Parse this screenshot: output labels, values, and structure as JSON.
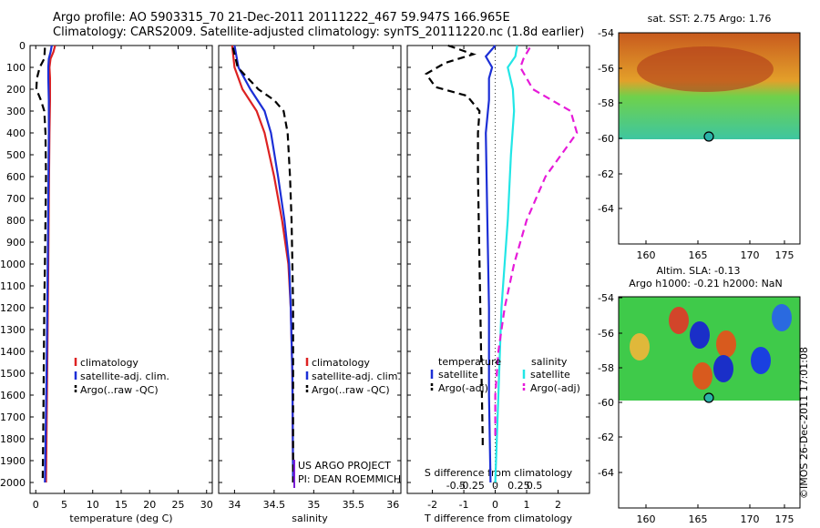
{
  "title": {
    "line1": "Argo profile: AO 5903315_70 21-Dec-2011 20111222_467 59.947S 166.965E",
    "line2": "Climatology: CARS2009. Satellite-adjusted climatology: synTS_20111220.nc (1.8d earlier)"
  },
  "colors": {
    "climatology": "#dd2222",
    "satellite": "#1c2fd6",
    "argo": "#000000",
    "cyan": "#22e6e6",
    "magenta": "#e61ad9"
  },
  "chart_data": [
    {
      "type": "line",
      "xlabel": "temperature (deg C)",
      "ylim": [
        0,
        2050
      ],
      "xlim": [
        -1,
        31
      ],
      "y_ticks": [
        0,
        100,
        200,
        300,
        400,
        500,
        600,
        700,
        800,
        900,
        1000,
        1100,
        1200,
        1300,
        1400,
        1500,
        1600,
        1700,
        1800,
        1900,
        2000
      ],
      "x_ticks": [
        0,
        5,
        10,
        15,
        20,
        25,
        30
      ],
      "legend": [
        "climatology",
        "satellite-adj. clim.",
        "Argo(..raw -QC)"
      ],
      "series": [
        {
          "name": "climatology",
          "y": [
            0,
            30,
            60,
            100,
            150,
            250,
            400,
            700,
            1000,
            1500,
            2000
          ],
          "values": [
            3.4,
            3.1,
            2.6,
            2.4,
            2.5,
            2.5,
            2.4,
            2.3,
            2.2,
            2.0,
            1.8
          ]
        },
        {
          "name": "satellite-adj. clim.",
          "y": [
            0,
            30,
            60,
            100,
            150,
            250,
            400,
            700,
            1000,
            1500,
            2000
          ],
          "values": [
            2.8,
            2.6,
            2.3,
            2.2,
            2.2,
            2.3,
            2.3,
            2.2,
            2.1,
            1.9,
            1.6
          ]
        },
        {
          "name": "Argo(..raw -QC)",
          "y": [
            10,
            60,
            100,
            150,
            200,
            250,
            300,
            400,
            600,
            800,
            1000,
            1200,
            1500,
            1800,
            2000
          ],
          "values": [
            1.6,
            1.5,
            0.7,
            0.2,
            0.1,
            0.9,
            1.5,
            1.7,
            1.8,
            1.7,
            1.6,
            1.5,
            1.4,
            1.3,
            1.2
          ]
        }
      ]
    },
    {
      "type": "line",
      "xlabel": "salinity",
      "xlim": [
        33.8,
        36.1
      ],
      "x_ticks": [
        34,
        34.5,
        35,
        35.5,
        36
      ],
      "legend": [
        "climatology",
        "satellite-adj. clim.",
        "Argo(..raw -QC)"
      ],
      "annotation": [
        "US ARGO PROJECT",
        "PI: DEAN ROEMMICH"
      ],
      "series": [
        {
          "name": "climatology",
          "y": [
            0,
            100,
            200,
            300,
            400,
            600,
            800,
            1000,
            1200,
            1500,
            2000
          ],
          "values": [
            33.97,
            34.0,
            34.1,
            34.28,
            34.38,
            34.5,
            34.6,
            34.68,
            34.71,
            34.73,
            34.74
          ]
        },
        {
          "name": "satellite-adj. clim.",
          "y": [
            0,
            100,
            200,
            300,
            400,
            600,
            800,
            1000,
            1200,
            1500,
            2000
          ],
          "values": [
            34.0,
            34.05,
            34.2,
            34.38,
            34.46,
            34.55,
            34.63,
            34.69,
            34.71,
            34.73,
            34.74
          ]
        },
        {
          "name": "Argo(..raw -QC)",
          "y": [
            10,
            100,
            200,
            250,
            300,
            400,
            600,
            800,
            1000,
            1200,
            1500,
            2000
          ],
          "values": [
            33.98,
            34.04,
            34.3,
            34.5,
            34.62,
            34.67,
            34.7,
            34.72,
            34.73,
            34.74,
            34.74,
            34.74
          ]
        }
      ]
    },
    {
      "type": "line",
      "xlabel": "T difference from climatology",
      "x2label": "S difference from climatology",
      "xlim": [
        -2.8,
        3.0
      ],
      "x_ticks": [
        -2,
        -1,
        0,
        1,
        2
      ],
      "x2_ticks": [
        "-0.5",
        "-0.25",
        "0",
        "0.25",
        "0.5"
      ],
      "legend_left_title": "temperature",
      "legend_right_title": "salinity",
      "legend": [
        "satellite",
        "Argo(-adj)",
        "satellite",
        "Argo(-adj)"
      ],
      "series": [
        {
          "name": "satellite",
          "y": [
            0,
            50,
            100,
            150,
            250,
            400,
            800,
            1200,
            1600,
            2000
          ],
          "values": [
            0.0,
            -0.3,
            -0.1,
            -0.2,
            -0.2,
            -0.3,
            -0.25,
            -0.2,
            -0.2,
            -0.15
          ]
        },
        {
          "name": "Argo(-adj)",
          "y": [
            0,
            40,
            80,
            130,
            190,
            230,
            300,
            400,
            600,
            1000,
            1400,
            1800,
            1850
          ],
          "values": [
            -1.5,
            -0.7,
            -1.6,
            -2.2,
            -1.9,
            -0.9,
            -0.5,
            -0.55,
            -0.55,
            -0.5,
            -0.45,
            -0.4,
            -0.4
          ]
        },
        {
          "name": "satellite",
          "y": [
            0,
            50,
            100,
            200,
            300,
            500,
            800,
            1200,
            1600,
            2000
          ],
          "values": [
            0.35,
            0.32,
            0.2,
            0.28,
            0.3,
            0.25,
            0.2,
            0.1,
            0.05,
            0.0
          ]
        },
        {
          "name": "Argo(-adj)",
          "y": [
            10,
            60,
            100,
            200,
            300,
            400,
            600,
            800,
            1000,
            1200,
            1400,
            1600,
            1800
          ],
          "values": [
            0.55,
            0.45,
            0.4,
            0.6,
            1.2,
            1.3,
            0.8,
            0.5,
            0.3,
            0.15,
            0.05,
            0.0,
            0.0
          ]
        }
      ]
    }
  ],
  "maps": [
    {
      "title": "sat. SST: 2.75 Argo: 1.76",
      "y_ticks": [
        "-54",
        "-56",
        "-58",
        "-60",
        "-62",
        "-64"
      ],
      "x_ticks": [
        "160",
        "165",
        "170",
        "175"
      ]
    },
    {
      "title1": "Altim. SLA: -0.13",
      "title2": "Argo h1000: -0.21 h2000: NaN",
      "y_ticks": [
        "-54",
        "-56",
        "-58",
        "-60",
        "-62",
        "-64"
      ],
      "x_ticks": [
        "160",
        "165",
        "170",
        "175"
      ]
    }
  ],
  "credit": "©IMOS 26-Dec-2011 17:01:08"
}
